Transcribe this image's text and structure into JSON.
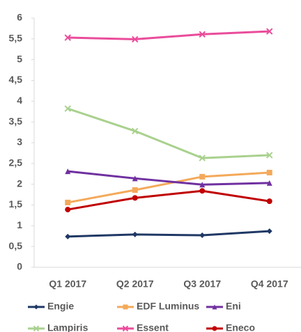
{
  "chart_data": {
    "type": "line",
    "categories": [
      "Q1 2017",
      "Q2 2017",
      "Q3 2017",
      "Q4 2017"
    ],
    "series": [
      {
        "name": "Engie",
        "color": "#1f3864",
        "marker": "diamond",
        "values": [
          0.74,
          0.79,
          0.77,
          0.87
        ]
      },
      {
        "name": "EDF Luminus",
        "color": "#f4a95a",
        "marker": "square",
        "values": [
          1.56,
          1.86,
          2.18,
          2.28
        ]
      },
      {
        "name": "Eni",
        "color": "#7030a0",
        "marker": "triangle",
        "values": [
          2.31,
          2.14,
          1.99,
          2.03
        ]
      },
      {
        "name": "Lampiris",
        "color": "#a9d18e",
        "marker": "x",
        "values": [
          3.82,
          3.28,
          2.63,
          2.7
        ]
      },
      {
        "name": "Essent",
        "color": "#ea4c9b",
        "marker": "x",
        "values": [
          5.53,
          5.49,
          5.61,
          5.68
        ]
      },
      {
        "name": "Eneco",
        "color": "#c00000",
        "marker": "circle",
        "values": [
          1.39,
          1.67,
          1.84,
          1.59
        ]
      }
    ],
    "ylim": [
      0,
      6
    ],
    "yticks": [
      0,
      {
        "value": 0.5,
        "label": "0,5"
      },
      1,
      {
        "value": 1.5,
        "label": "1,5"
      },
      2,
      {
        "value": 2.5,
        "label": "2,5"
      },
      3,
      {
        "value": 3.5,
        "label": "3,5"
      },
      4,
      {
        "value": 4.5,
        "label": "4,5"
      },
      5,
      {
        "value": 5.5,
        "label": "5,5"
      },
      6
    ],
    "grid": false,
    "legend": "bottom"
  }
}
